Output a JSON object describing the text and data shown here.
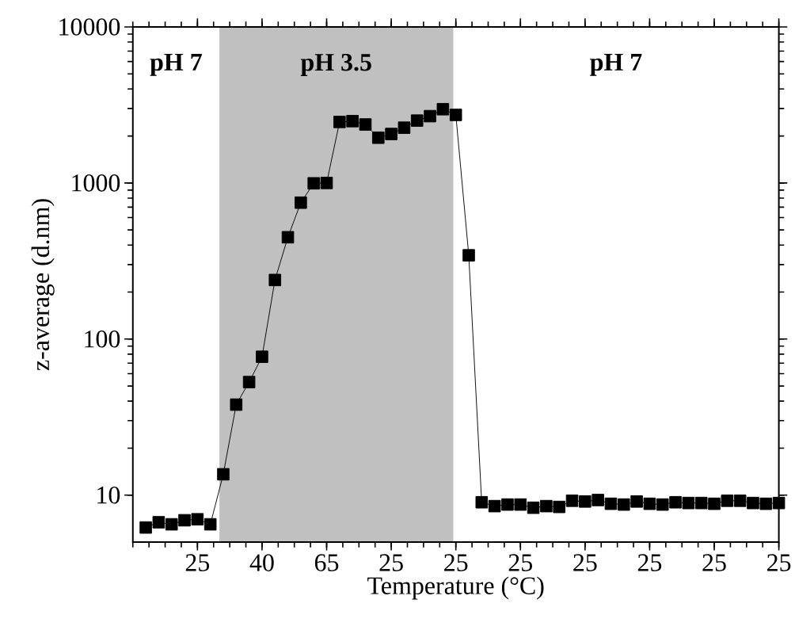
{
  "chart_data": {
    "type": "line",
    "xlabel": "Temperature (°C)",
    "ylabel": "z-average (d.nm)",
    "categories": [
      null,
      null,
      null,
      null,
      "25",
      null,
      null,
      null,
      null,
      "40",
      null,
      null,
      null,
      null,
      "65",
      null,
      null,
      null,
      null,
      "25",
      null,
      null,
      null,
      null,
      "25",
      null,
      null,
      null,
      null,
      "25",
      null,
      null,
      null,
      null,
      "25",
      null,
      null,
      null,
      null,
      "25",
      null,
      null,
      null,
      null,
      "25",
      null,
      null,
      null,
      null,
      "25"
    ],
    "series": [
      {
        "color": "#000000",
        "values": [
          6.2,
          6.7,
          6.5,
          6.9,
          7.0,
          6.5,
          13.6,
          38,
          53,
          77,
          239,
          449,
          748,
          995,
          1000,
          2460,
          2490,
          2370,
          1950,
          2060,
          2260,
          2510,
          2680,
          2970,
          2730,
          344,
          9.0,
          8.5,
          8.7,
          8.7,
          8.3,
          8.5,
          8.4,
          9.2,
          9.1,
          9.3,
          8.8,
          8.7,
          9.1,
          8.8,
          8.7,
          9.0,
          8.9,
          8.9,
          8.8,
          9.2,
          9.2,
          8.9,
          8.8,
          8.9
        ]
      }
    ],
    "ylim": [
      5,
      10000
    ],
    "yticks": [
      10,
      100,
      1000,
      10000
    ],
    "log": "y",
    "annotations": [
      "pH 7",
      "pH 3.5",
      "pH 7"
    ],
    "marker": "square",
    "line_style": "solid",
    "grid": false
  }
}
